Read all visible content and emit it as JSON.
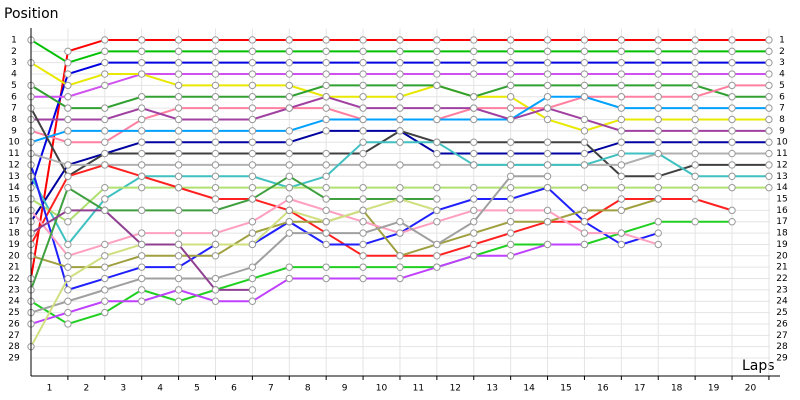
{
  "chart_data": {
    "type": "line",
    "y_axis_title": "Position",
    "x_axis_title": "Laps",
    "x": [
      0,
      1,
      2,
      3,
      4,
      5,
      6,
      7,
      8,
      9,
      10,
      11,
      12,
      13,
      14,
      15,
      16,
      17,
      18,
      19,
      20
    ],
    "xlim": [
      0,
      20.3
    ],
    "xticks": [
      1,
      2,
      3,
      4,
      5,
      6,
      7,
      8,
      9,
      10,
      11,
      12,
      13,
      14,
      15,
      16,
      17,
      18,
      19,
      20
    ],
    "ylim": [
      0,
      30
    ],
    "y_inverted": true,
    "yticks": [
      1,
      2,
      3,
      4,
      5,
      6,
      7,
      8,
      9,
      10,
      11,
      12,
      13,
      14,
      15,
      16,
      17,
      18,
      19,
      20,
      21,
      22,
      23,
      24,
      25,
      26,
      27,
      28,
      29
    ],
    "grid": true,
    "series": [
      {
        "color": "#ff0000",
        "values": [
          22,
          2,
          1,
          1,
          1,
          1,
          1,
          1,
          1,
          1,
          1,
          1,
          1,
          1,
          1,
          1,
          1,
          1,
          1,
          1,
          1
        ]
      },
      {
        "color": "#00c000",
        "values": [
          1,
          3,
          2,
          2,
          2,
          2,
          2,
          2,
          2,
          2,
          2,
          2,
          2,
          2,
          2,
          2,
          2,
          2,
          2,
          2,
          2
        ]
      },
      {
        "color": "#0000e0",
        "values": [
          14,
          4,
          3,
          3,
          3,
          3,
          3,
          3,
          3,
          3,
          3,
          3,
          3,
          3,
          3,
          3,
          3,
          3,
          3,
          3,
          3
        ]
      },
      {
        "color": "#d050f0",
        "values": [
          6,
          6,
          5,
          4,
          4,
          4,
          4,
          4,
          4,
          4,
          4,
          4,
          4,
          4,
          4,
          4,
          4,
          4,
          4,
          4,
          4
        ]
      },
      {
        "color": "#e8e800",
        "values": [
          3,
          5,
          4,
          4,
          5,
          5,
          5,
          5,
          6,
          6,
          6,
          5,
          6,
          6,
          8,
          9,
          8,
          8,
          8,
          8,
          8
        ]
      },
      {
        "color": "#30a030",
        "values": [
          5,
          7,
          7,
          6,
          6,
          6,
          6,
          6,
          5,
          5,
          5,
          5,
          6,
          5,
          5,
          5,
          5,
          5,
          5,
          6,
          6
        ]
      },
      {
        "color": "#ff80a0",
        "values": [
          9,
          10,
          10,
          8,
          7,
          7,
          7,
          7,
          7,
          8,
          8,
          8,
          7,
          7,
          7,
          6,
          6,
          6,
          6,
          5,
          5
        ]
      },
      {
        "color": "#00a0ff",
        "values": [
          10,
          9,
          9,
          9,
          9,
          9,
          9,
          9,
          8,
          8,
          8,
          8,
          8,
          8,
          6,
          6,
          7,
          7,
          7,
          7,
          7
        ]
      },
      {
        "color": "#a040a0",
        "values": [
          8,
          8,
          8,
          7,
          8,
          8,
          8,
          7,
          6,
          7,
          7,
          7,
          7,
          8,
          7,
          8,
          9,
          9,
          9,
          9,
          9
        ]
      },
      {
        "color": "#0000a0",
        "values": [
          17,
          12,
          11,
          10,
          10,
          10,
          10,
          10,
          9,
          9,
          9,
          11,
          11,
          11,
          11,
          11,
          10,
          10,
          10,
          10,
          10
        ]
      },
      {
        "color": "#404040",
        "values": [
          7,
          13,
          11,
          11,
          11,
          11,
          11,
          11,
          11,
          11,
          9,
          10,
          10,
          10,
          10,
          10,
          13,
          13,
          12,
          12,
          12
        ]
      },
      {
        "color": "#b0b0b0",
        "values": [
          11,
          12,
          12,
          12,
          12,
          12,
          12,
          12,
          12,
          12,
          12,
          12,
          12,
          12,
          12,
          12,
          12,
          11,
          11,
          11,
          11
        ]
      },
      {
        "color": "#40c0c0",
        "values": [
          13,
          19,
          15,
          13,
          13,
          13,
          13,
          14,
          13,
          10,
          10,
          10,
          12,
          12,
          12,
          12,
          11,
          11,
          13,
          13,
          13
        ]
      },
      {
        "color": "#b0e070",
        "values": [
          15,
          17,
          14,
          14,
          14,
          14,
          14,
          14,
          14,
          14,
          14,
          14,
          14,
          14,
          14,
          14,
          14,
          14,
          14,
          14,
          14
        ]
      },
      {
        "color": "#ff2020",
        "values": [
          19,
          13,
          12,
          13,
          14,
          15,
          15,
          16,
          18,
          20,
          20,
          20,
          19,
          18,
          17,
          17,
          15,
          15,
          15,
          16,
          null
        ]
      },
      {
        "color": "#20d020",
        "values": [
          24,
          26,
          25,
          23,
          24,
          23,
          22,
          21,
          21,
          21,
          21,
          21,
          20,
          19,
          19,
          19,
          18,
          17,
          17,
          17,
          null
        ]
      },
      {
        "color": "#2020ff",
        "values": [
          12,
          23,
          22,
          21,
          21,
          19,
          19,
          17,
          19,
          19,
          18,
          16,
          15,
          15,
          14,
          17,
          19,
          18,
          null,
          null,
          null
        ]
      },
      {
        "color": "#a0a040",
        "values": [
          20,
          21,
          21,
          20,
          20,
          20,
          18,
          17,
          17,
          16,
          20,
          19,
          18,
          17,
          17,
          16,
          16,
          15,
          null,
          null,
          null
        ]
      },
      {
        "color": "#ffa0c0",
        "values": [
          16,
          20,
          19,
          18,
          18,
          18,
          17,
          15,
          16,
          17,
          18,
          17,
          16,
          16,
          16,
          18,
          18,
          19,
          null,
          null,
          null
        ]
      },
      {
        "color": "#c040ff",
        "values": [
          26,
          25,
          24,
          24,
          23,
          24,
          24,
          22,
          22,
          22,
          22,
          21,
          20,
          20,
          19,
          19,
          null,
          null,
          null,
          null,
          null
        ]
      },
      {
        "color": "#40a040",
        "values": [
          23,
          14,
          16,
          16,
          16,
          16,
          15,
          13,
          15,
          15,
          15,
          15,
          null,
          null,
          null,
          null,
          null,
          null,
          null,
          null,
          null
        ]
      },
      {
        "color": "#a0a0a0",
        "values": [
          25,
          24,
          23,
          22,
          22,
          22,
          21,
          18,
          18,
          18,
          17,
          19,
          17,
          13,
          13,
          null,
          null,
          null,
          null,
          null,
          null
        ]
      },
      {
        "color": "#d0e080",
        "values": [
          28,
          22,
          20,
          19,
          19,
          19,
          19,
          16,
          17,
          16,
          15,
          16,
          null,
          null,
          null,
          null,
          null,
          null,
          null,
          null,
          null
        ]
      },
      {
        "color": "#904090",
        "values": [
          18,
          16,
          16,
          19,
          19,
          23,
          23,
          null,
          null,
          null,
          null,
          null,
          null,
          null,
          null,
          null,
          null,
          null,
          null,
          null,
          null
        ]
      }
    ]
  }
}
